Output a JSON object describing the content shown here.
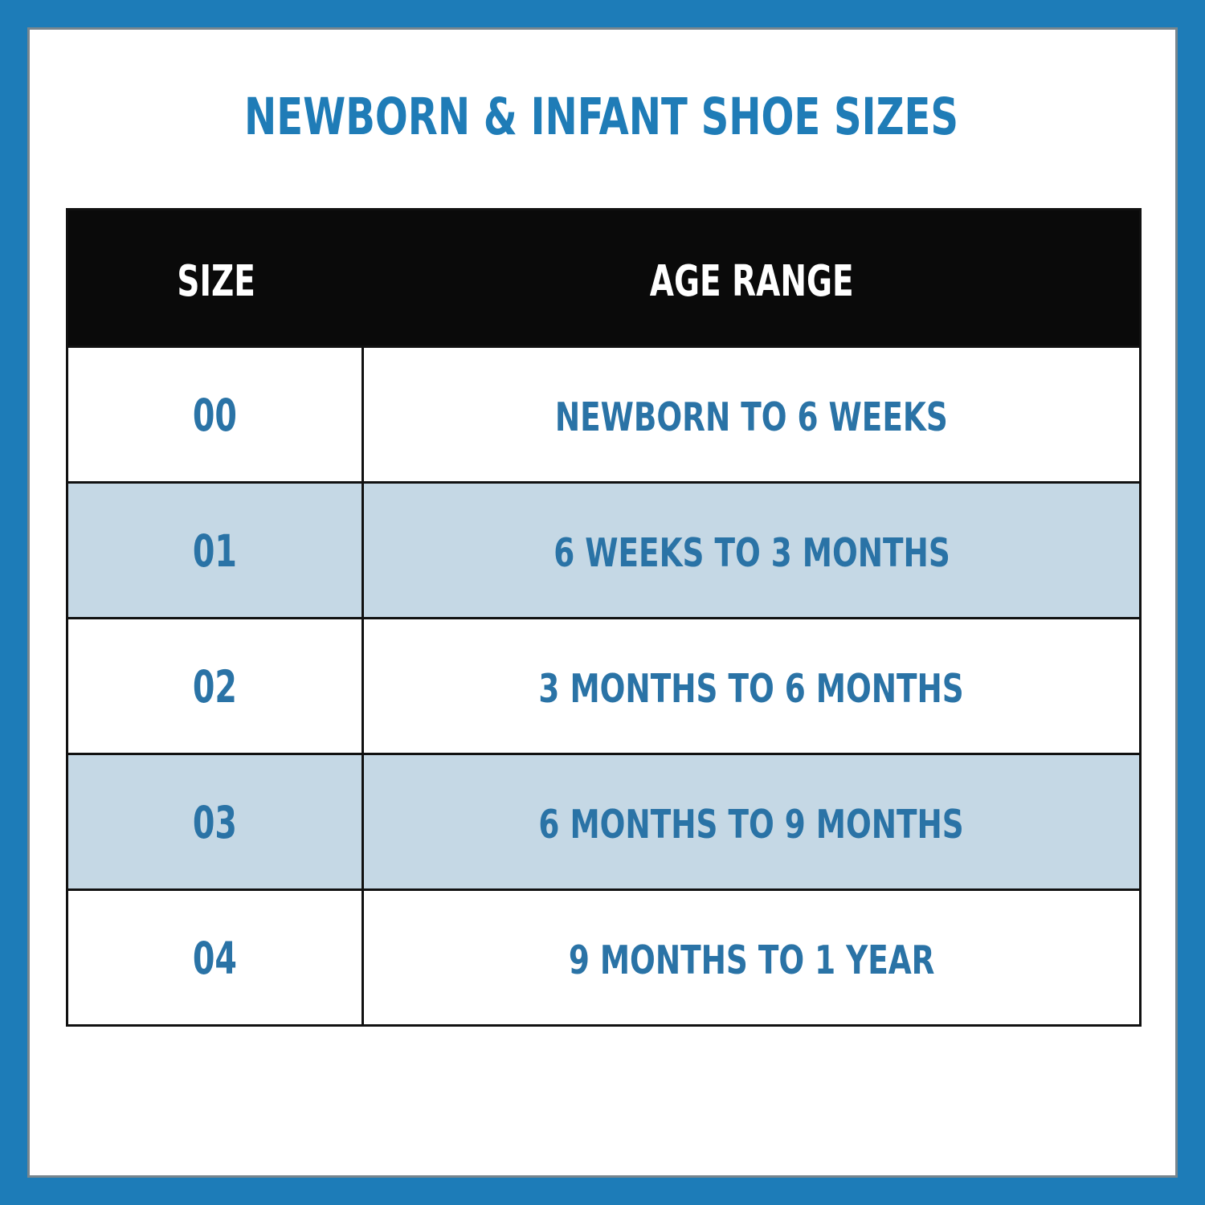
{
  "page": {
    "title": "NEWBORN & INFANT SHOE SIZES"
  },
  "colors": {
    "frame_blue": "#1d7cb8",
    "title_blue": "#1f7cb7",
    "cell_text_blue": "#2a73a6",
    "header_bg": "#0a0a0a",
    "header_text": "#ffffff",
    "row_alt_blue": "#c5d8e5",
    "row_white": "#ffffff",
    "grid_line": "#111111"
  },
  "table": {
    "columns": [
      {
        "label": "SIZE"
      },
      {
        "label": "AGE RANGE"
      }
    ],
    "rows": [
      {
        "size": "00",
        "age_range": "NEWBORN TO 6 WEEKS"
      },
      {
        "size": "01",
        "age_range": "6 WEEKS TO 3 MONTHS"
      },
      {
        "size": "02",
        "age_range": "3 MONTHS TO 6 MONTHS"
      },
      {
        "size": "03",
        "age_range": "6 MONTHS TO 9 MONTHS"
      },
      {
        "size": "04",
        "age_range": "9 MONTHS TO 1 YEAR"
      }
    ]
  },
  "chart_data": {
    "type": "table",
    "title": "NEWBORN & INFANT SHOE SIZES",
    "columns": [
      "SIZE",
      "AGE RANGE"
    ],
    "rows": [
      [
        "00",
        "NEWBORN TO 6 WEEKS"
      ],
      [
        "01",
        "6 WEEKS TO 3 MONTHS"
      ],
      [
        "02",
        "3 MONTHS TO 6 MONTHS"
      ],
      [
        "03",
        "6 MONTHS TO 9 MONTHS"
      ],
      [
        "04",
        "9 MONTHS TO 1 YEAR"
      ]
    ]
  }
}
